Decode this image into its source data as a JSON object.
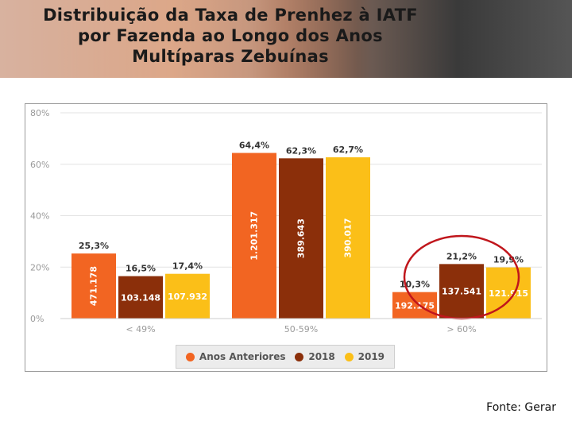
{
  "title_lines": [
    "Distribuição da Taxa de Prenhez à IATF",
    "por Fazenda ao Longo dos Anos",
    "Multíparas Zebuínas"
  ],
  "source": "Fonte: Gerar",
  "chart_data": {
    "type": "bar",
    "categories": [
      "< 49%",
      "50-59%",
      "> 60%"
    ],
    "y_ticks": [
      "0%",
      "20%",
      "40%",
      "60%",
      "80%"
    ],
    "ylim": [
      0,
      80
    ],
    "legend_position": "bottom",
    "series": [
      {
        "name": "Anos Anteriores",
        "color": "#f26522",
        "values": [
          25.3,
          64.4,
          10.3
        ],
        "value_labels": [
          "25,3%",
          "64,4%",
          "10,3%"
        ],
        "count_labels": [
          "471.178",
          "1.201.317",
          "192.175"
        ]
      },
      {
        "name": "2018",
        "color": "#8b2f0a",
        "values": [
          16.5,
          62.3,
          21.2
        ],
        "value_labels": [
          "16,5%",
          "62,3%",
          "21,2%"
        ],
        "count_labels": [
          "103.148",
          "389.643",
          "137.541"
        ]
      },
      {
        "name": "2019",
        "color": "#fbbf18",
        "values": [
          17.4,
          62.7,
          19.9
        ],
        "value_labels": [
          "17,4%",
          "62,7%",
          "19,9%"
        ],
        "count_labels": [
          "107.932",
          "390.017",
          "121.915"
        ]
      }
    ],
    "highlight_category": "> 60%",
    "highlight_color": "#c0161c"
  }
}
